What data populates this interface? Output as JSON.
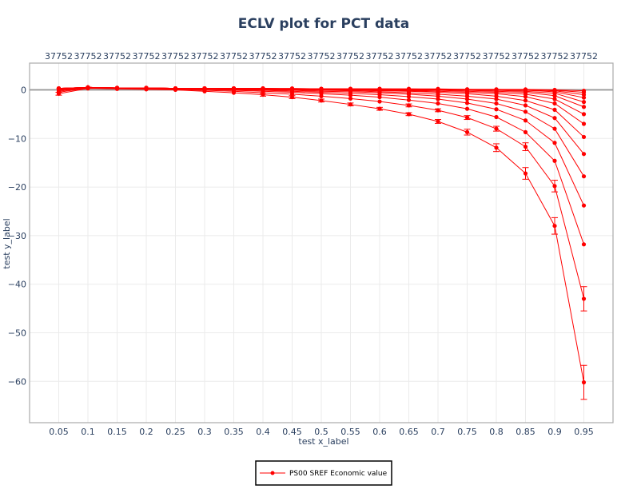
{
  "chart_data": {
    "type": "line",
    "title": "ECLV plot for PCT data",
    "xlabel": "test x_label",
    "ylabel": "test y_label",
    "x": [
      0.05,
      0.1,
      0.15,
      0.2,
      0.25,
      0.3,
      0.35,
      0.4,
      0.45,
      0.5,
      0.55,
      0.6,
      0.65,
      0.7,
      0.75,
      0.8,
      0.85,
      0.9,
      0.95
    ],
    "x_tick_labels": [
      "0.05",
      "0.1",
      "0.15",
      "0.2",
      "0.25",
      "0.3",
      "0.35",
      "0.4",
      "0.45",
      "0.5",
      "0.55",
      "0.6",
      "0.65",
      "0.7",
      "0.75",
      "0.8",
      "0.85",
      "0.9",
      "0.95"
    ],
    "top_tick_labels": [
      "37752",
      "37752",
      "37752",
      "37752",
      "37752",
      "37752",
      "37752",
      "37752",
      "37752",
      "37752",
      "37752",
      "37752",
      "37752",
      "37752",
      "37752",
      "37752",
      "37752",
      "37752",
      "37752"
    ],
    "y_ticks": [
      0,
      -10,
      -20,
      -30,
      -40,
      -50,
      -60
    ],
    "y_tick_labels": [
      "0",
      "−10",
      "−20",
      "−30",
      "−40",
      "−50",
      "−60"
    ],
    "xlim": [
      0.0,
      1.0
    ],
    "ylim": [
      -68.5,
      5.5
    ],
    "grid": true,
    "legend_position": "bottom-center",
    "color": "#ff0000",
    "series": [
      {
        "name": "PS00 SREF Economic value",
        "values": [
          -0.8,
          0.3,
          0.2,
          0.1,
          0.0,
          -0.3,
          -0.6,
          -1.0,
          -1.5,
          -2.2,
          -3.0,
          -3.9,
          -5.0,
          -6.5,
          -8.7,
          -11.9,
          -17.2,
          -28.0,
          -60.2
        ],
        "errors": [
          0.3,
          0.2,
          0.2,
          0.2,
          0.2,
          0.2,
          0.2,
          0.3,
          0.3,
          0.3,
          0.3,
          0.3,
          0.3,
          0.4,
          0.6,
          0.8,
          1.2,
          1.7,
          3.5
        ]
      },
      {
        "name": "",
        "values": [
          -0.5,
          0.4,
          0.3,
          0.2,
          0.1,
          -0.1,
          -0.3,
          -0.6,
          -0.9,
          -1.3,
          -1.8,
          -2.4,
          -3.2,
          -4.2,
          -5.7,
          -8.0,
          -11.7,
          -19.8,
          -43.0
        ],
        "errors": [
          0.2,
          0.2,
          0.2,
          0.2,
          0.2,
          0.2,
          0.2,
          0.2,
          0.2,
          0.2,
          0.2,
          0.2,
          0.3,
          0.3,
          0.4,
          0.5,
          0.8,
          1.2,
          2.5
        ]
      },
      {
        "name": "",
        "values": [
          -0.3,
          0.5,
          0.4,
          0.3,
          0.2,
          0.1,
          -0.1,
          -0.3,
          -0.5,
          -0.8,
          -1.1,
          -1.5,
          -2.1,
          -2.8,
          -3.9,
          -5.6,
          -8.7,
          -14.6,
          -31.8
        ]
      },
      {
        "name": "",
        "values": [
          -0.1,
          0.5,
          0.4,
          0.3,
          0.2,
          0.1,
          0.0,
          -0.1,
          -0.3,
          -0.5,
          -0.7,
          -1.0,
          -1.4,
          -1.9,
          -2.7,
          -4.0,
          -6.3,
          -10.9,
          -23.8
        ]
      },
      {
        "name": "",
        "values": [
          0.0,
          0.5,
          0.4,
          0.3,
          0.3,
          0.2,
          0.1,
          0.0,
          -0.1,
          -0.3,
          -0.4,
          -0.6,
          -0.9,
          -1.3,
          -1.9,
          -2.8,
          -4.5,
          -8.0,
          -17.8
        ]
      },
      {
        "name": "",
        "values": [
          0.1,
          0.5,
          0.4,
          0.4,
          0.3,
          0.2,
          0.2,
          0.1,
          0.0,
          -0.1,
          -0.2,
          -0.4,
          -0.6,
          -0.9,
          -1.3,
          -1.9,
          -3.2,
          -5.8,
          -13.2
        ]
      },
      {
        "name": "",
        "values": [
          0.2,
          0.5,
          0.4,
          0.4,
          0.3,
          0.3,
          0.2,
          0.2,
          0.1,
          0.0,
          -0.1,
          -0.2,
          -0.3,
          -0.5,
          -0.8,
          -1.3,
          -2.2,
          -4.1,
          -9.7
        ]
      },
      {
        "name": "",
        "values": [
          0.2,
          0.5,
          0.4,
          0.4,
          0.3,
          0.3,
          0.2,
          0.2,
          0.1,
          0.1,
          0.0,
          -0.1,
          -0.2,
          -0.3,
          -0.5,
          -0.8,
          -1.4,
          -2.8,
          -7.0
        ]
      },
      {
        "name": "",
        "values": [
          0.3,
          0.5,
          0.4,
          0.4,
          0.3,
          0.3,
          0.3,
          0.2,
          0.2,
          0.1,
          0.1,
          0.0,
          -0.1,
          -0.1,
          -0.3,
          -0.5,
          -0.9,
          -1.9,
          -5.0
        ]
      },
      {
        "name": "",
        "values": [
          0.3,
          0.5,
          0.4,
          0.4,
          0.3,
          0.3,
          0.3,
          0.2,
          0.2,
          0.2,
          0.1,
          0.1,
          0.0,
          0.0,
          -0.1,
          -0.3,
          -0.5,
          -1.2,
          -3.5
        ]
      },
      {
        "name": "",
        "values": [
          0.3,
          0.5,
          0.4,
          0.4,
          0.3,
          0.3,
          0.3,
          0.2,
          0.2,
          0.2,
          0.1,
          0.1,
          0.1,
          0.0,
          0.0,
          -0.1,
          -0.3,
          -0.7,
          -2.5
        ]
      },
      {
        "name": "",
        "values": [
          0.3,
          0.5,
          0.4,
          0.4,
          0.3,
          0.3,
          0.3,
          0.3,
          0.2,
          0.2,
          0.2,
          0.1,
          0.1,
          0.1,
          0.0,
          0.0,
          -0.1,
          -0.4,
          -1.6
        ]
      },
      {
        "name": "",
        "values": [
          0.3,
          0.5,
          0.4,
          0.4,
          0.3,
          0.3,
          0.3,
          0.3,
          0.2,
          0.2,
          0.2,
          0.2,
          0.1,
          0.1,
          0.1,
          0.0,
          0.0,
          -0.2,
          -1.0
        ]
      },
      {
        "name": "",
        "values": [
          0.3,
          0.5,
          0.4,
          0.4,
          0.3,
          0.3,
          0.3,
          0.3,
          0.2,
          0.2,
          0.2,
          0.2,
          0.2,
          0.1,
          0.1,
          0.1,
          0.0,
          -0.1,
          -0.5
        ]
      },
      {
        "name": "",
        "values": [
          0.3,
          0.5,
          0.4,
          0.4,
          0.3,
          0.3,
          0.3,
          0.3,
          0.3,
          0.2,
          0.2,
          0.2,
          0.2,
          0.2,
          0.1,
          0.1,
          0.1,
          0.0,
          -0.2
        ]
      }
    ]
  }
}
